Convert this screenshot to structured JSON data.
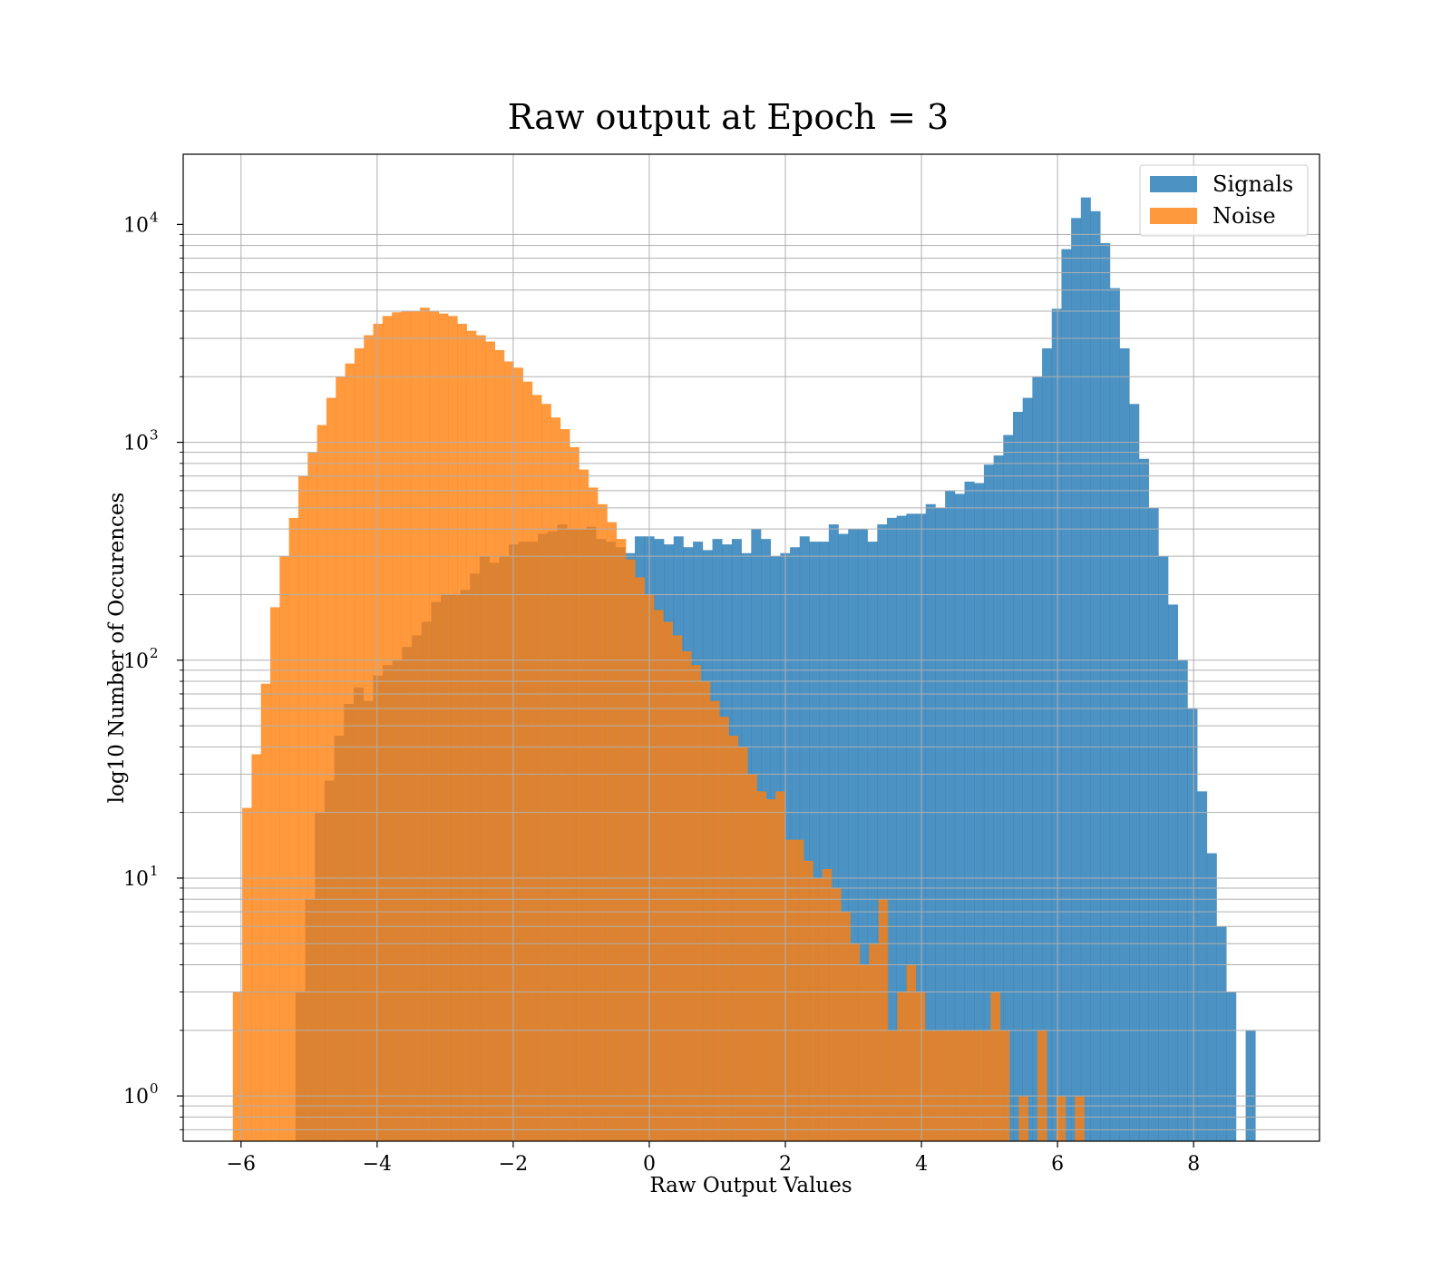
{
  "chart_data": {
    "type": "histogram",
    "title": "Raw output at Epoch = 3",
    "xlabel": "Raw Output Values",
    "ylabel": "log10 Number of Occurences",
    "yscale": "log",
    "xlim": [
      -6.85,
      9.85
    ],
    "ylim": [
      0.62,
      21000
    ],
    "xticks": [
      -6,
      -4,
      -2,
      0,
      2,
      4,
      6,
      8
    ],
    "xtick_labels": [
      "−6",
      "−4",
      "−2",
      "0",
      "2",
      "4",
      "6",
      "8"
    ],
    "yticks": [
      1,
      10,
      100,
      1000,
      10000
    ],
    "ytick_bases": [
      "10",
      "10",
      "10",
      "10",
      "10"
    ],
    "ytick_exponents": [
      "0",
      "1",
      "2",
      "3",
      "4"
    ],
    "grid": true,
    "legend_position": "upper right",
    "series": [
      {
        "name": "Signals",
        "color": "#1f77b4",
        "alpha": 0.8,
        "bin_start": -5.2,
        "bin_width": 0.1425,
        "counts": [
          3,
          8,
          20,
          28,
          45,
          63,
          75,
          65,
          85,
          95,
          100,
          115,
          130,
          150,
          185,
          200,
          200,
          210,
          250,
          300,
          280,
          300,
          340,
          350,
          350,
          380,
          390,
          420,
          400,
          400,
          410,
          360,
          350,
          330,
          310,
          370,
          370,
          360,
          340,
          370,
          330,
          350,
          320,
          360,
          340,
          360,
          310,
          400,
          360,
          300,
          310,
          330,
          370,
          350,
          350,
          420,
          380,
          400,
          400,
          350,
          420,
          450,
          460,
          470,
          470,
          520,
          500,
          600,
          580,
          660,
          650,
          790,
          870,
          1080,
          1380,
          1600,
          2000,
          2700,
          4100,
          7700,
          10700,
          13300,
          11500,
          8200,
          5100,
          2700,
          1500,
          840,
          500,
          300,
          180,
          100,
          60,
          25,
          13,
          6,
          3,
          0,
          2
        ]
      },
      {
        "name": "Noise",
        "color": "#ff7f0e",
        "alpha": 0.8,
        "bin_start": -6.12,
        "bin_width": 0.1375,
        "counts": [
          3,
          21,
          37,
          78,
          175,
          300,
          450,
          700,
          900,
          1200,
          1600,
          2000,
          2300,
          2700,
          3100,
          3500,
          3800,
          3950,
          4000,
          4000,
          4150,
          4000,
          3900,
          3800,
          3500,
          3250,
          3100,
          2900,
          2650,
          2350,
          2200,
          1900,
          1650,
          1500,
          1300,
          1150,
          950,
          750,
          620,
          520,
          430,
          360,
          290,
          240,
          200,
          170,
          150,
          130,
          110,
          95,
          80,
          65,
          55,
          45,
          40,
          30,
          25,
          23,
          25,
          15,
          15,
          12,
          10,
          11,
          9,
          7,
          5,
          4,
          5,
          8,
          2,
          3,
          4,
          3,
          2,
          2,
          2,
          2,
          2,
          2,
          2,
          3,
          2,
          0,
          1,
          0,
          2,
          0,
          1,
          0,
          1
        ]
      }
    ]
  }
}
